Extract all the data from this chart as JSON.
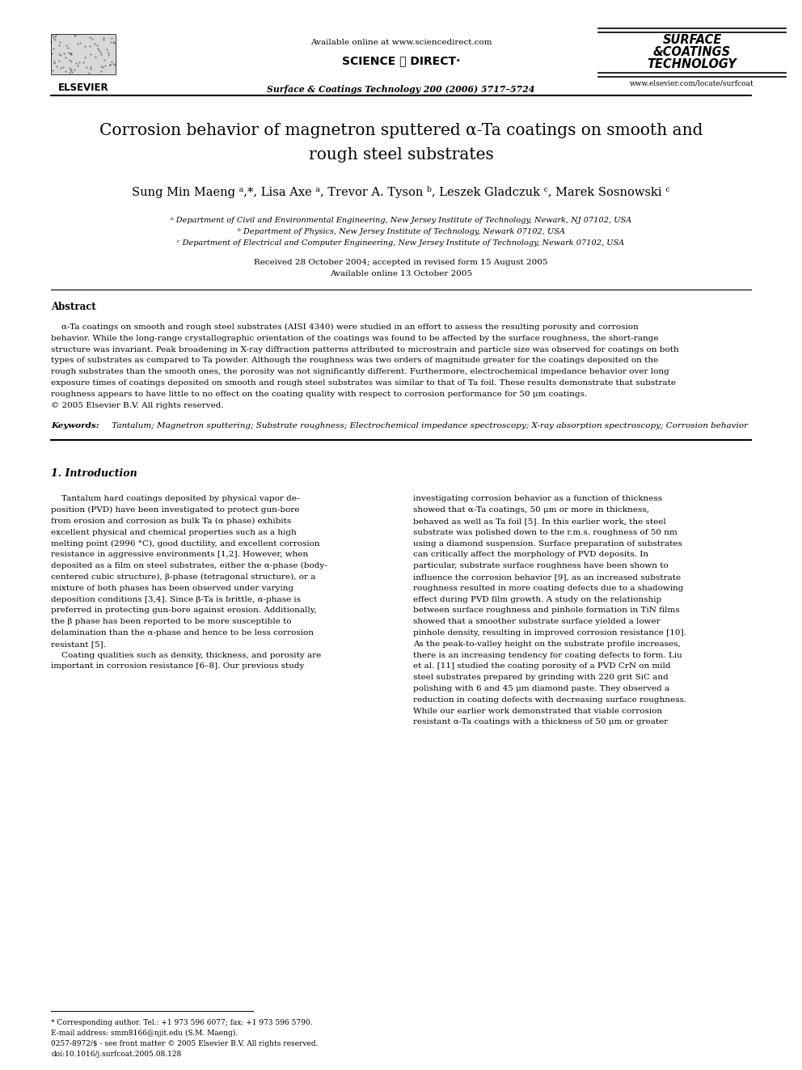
{
  "bg_color": "#ffffff",
  "title_line1": "Corrosion behavior of magnetron sputtered α-Ta coatings on smooth and",
  "title_line2": "rough steel substrates",
  "authors": "Sung Min Maeng ᵃ,*, Lisa Axe ᵃ, Trevor A. Tyson ᵇ, Leszek Gladczuk ᶜ, Marek Sosnowski ᶜ",
  "affil_a": "ᵃ Department of Civil and Environmental Engineering, New Jersey Institute of Technology, Newark, NJ 07102, USA",
  "affil_b": "ᵇ Department of Physics, New Jersey Institute of Technology, Newark 07102, USA",
  "affil_c": "ᶜ Department of Electrical and Computer Engineering, New Jersey Institute of Technology, Newark 07102, USA",
  "received": "Received 28 October 2004; accepted in revised form 15 August 2005",
  "available": "Available online 13 October 2005",
  "header_center": "Available online at www.sciencedirect.com",
  "sciencedirect": "SCIENCE ⓓ DIRECT·",
  "journal_line": "Surface & Coatings Technology 200 (2006) 5717–5724",
  "website": "www.elsevier.com/locate/surfcoat",
  "elsevier_text": "ELSEVIER",
  "journal_logo": "SURFACE\n&COATINGS\nTECHNOLOGY",
  "abstract_title": "Abstract",
  "keywords_label": "Keywords:",
  "keywords_text": " Tantalum; Magnetron sputtering; Substrate roughness; Electrochemical impedance spectroscopy; X-ray absorption spectroscopy; Corrosion behavior",
  "section1_title": "1. Introduction",
  "copyright": "© 2005 Elsevier B.V. All rights reserved.",
  "footnote1": "* Corresponding author. Tel.: +1 973 596 6077; fax: +1 973 596 5790.",
  "footnote2": "E-mail address: smm8166@njit.edu (S.M. Maeng).",
  "footnote3": "0257-8972/$ - see front matter © 2005 Elsevier B.V. All rights reserved.",
  "footnote4": "doi:10.1016/j.surfcoat.2005.08.128",
  "abstract_lines": [
    "    α-Ta coatings on smooth and rough steel substrates (AISI 4340) were studied in an effort to assess the resulting porosity and corrosion",
    "behavior. While the long-range crystallographic orientation of the coatings was found to be affected by the surface roughness, the short-range",
    "structure was invariant. Peak broadening in X-ray diffraction patterns attributed to microstrain and particle size was observed for coatings on both",
    "types of substrates as compared to Ta powder. Although the roughness was two orders of magnitude greater for the coatings deposited on the",
    "rough substrates than the smooth ones, the porosity was not significantly different. Furthermore, electrochemical impedance behavior over long",
    "exposure times of coatings deposited on smooth and rough steel substrates was similar to that of Ta foil. These results demonstrate that substrate",
    "roughness appears to have little to no effect on the coating quality with respect to corrosion performance for 50 μm coatings.",
    "© 2005 Elsevier B.V. All rights reserved."
  ],
  "col1_lines": [
    "    Tantalum hard coatings deposited by physical vapor de-",
    "position (PVD) have been investigated to protect gun-bore",
    "from erosion and corrosion as bulk Ta (α phase) exhibits",
    "excellent physical and chemical properties such as a high",
    "melting point (2996 °C), good ductility, and excellent corrosion",
    "resistance in aggressive environments [1,2]. However, when",
    "deposited as a film on steel substrates, either the α-phase (body-",
    "centered cubic structure), β-phase (tetragonal structure), or a",
    "mixture of both phases has been observed under varying",
    "deposition conditions [3,4]. Since β-Ta is brittle, α-phase is",
    "preferred in protecting gun-bore against erosion. Additionally,",
    "the β phase has been reported to be more susceptible to",
    "delamination than the α-phase and hence to be less corrosion",
    "resistant [5].",
    "    Coating qualities such as density, thickness, and porosity are",
    "important in corrosion resistance [6–8]. Our previous study"
  ],
  "col2_lines": [
    "investigating corrosion behavior as a function of thickness",
    "showed that α-Ta coatings, 50 μm or more in thickness,",
    "behaved as well as Ta foil [5]. In this earlier work, the steel",
    "substrate was polished down to the r.m.s. roughness of 50 nm",
    "using a diamond suspension. Surface preparation of substrates",
    "can critically affect the morphology of PVD deposits. In",
    "particular, substrate surface roughness have been shown to",
    "influence the corrosion behavior [9], as an increased substrate",
    "roughness resulted in more coating defects due to a shadowing",
    "effect during PVD film growth. A study on the relationship",
    "between surface roughness and pinhole formation in TiN films",
    "showed that a smoother substrate surface yielded a lower",
    "pinhole density, resulting in improved corrosion resistance [10].",
    "As the peak-to-valley height on the substrate profile increases,",
    "there is an increasing tendency for coating defects to form. Liu",
    "et al. [11] studied the coating porosity of a PVD CrN on mild",
    "steel substrates prepared by grinding with 220 grit SiC and",
    "polishing with 6 and 45 μm diamond paste. They observed a",
    "reduction in coating defects with decreasing surface roughness.",
    "While our earlier work demonstrated that viable corrosion",
    "resistant α-Ta coatings with a thickness of 50 μm or greater"
  ]
}
